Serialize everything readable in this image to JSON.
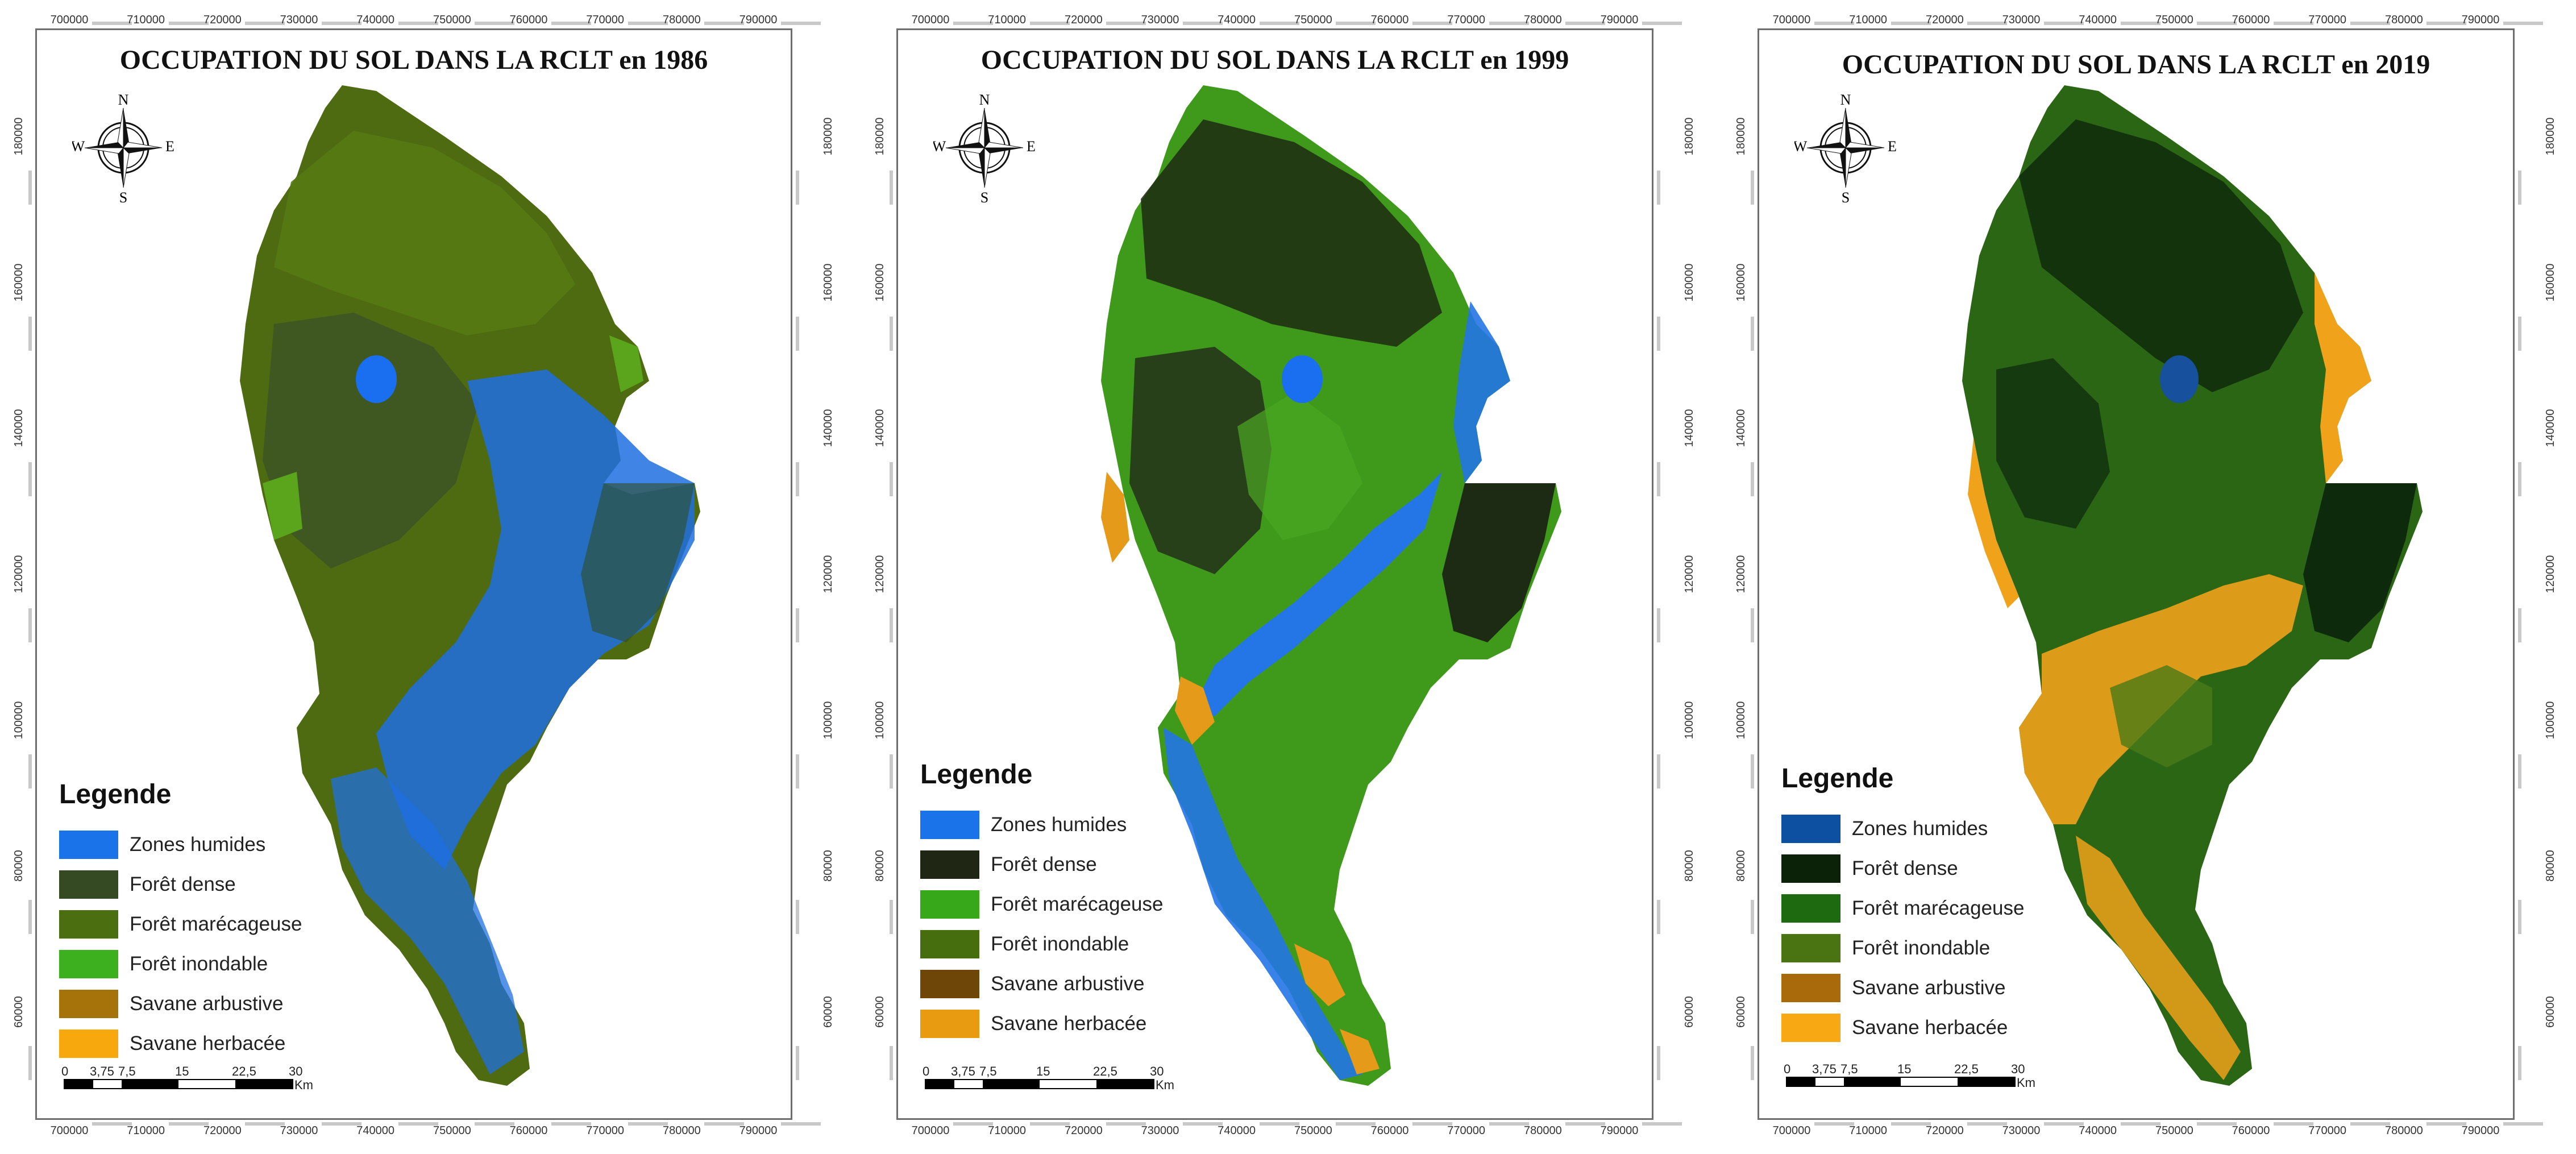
{
  "xticks": [
    "700000",
    "710000",
    "720000",
    "730000",
    "740000",
    "750000",
    "760000",
    "770000",
    "780000",
    "790000"
  ],
  "yticks": [
    "180000",
    "160000",
    "140000",
    "120000",
    "100000",
    "80000",
    "60000"
  ],
  "compass": {
    "n": "N",
    "s": "S",
    "e": "E",
    "w": "W"
  },
  "legend_title": "Legende",
  "scale": {
    "labels": [
      "0",
      "3,75",
      "7,5",
      "15",
      "22,5",
      "30"
    ],
    "unit": "Km"
  },
  "maps": [
    {
      "title": "OCCUPATION DU SOL DANS LA RCLT en 1986",
      "colors": {
        "base": "#4e6b12",
        "north": "#587a14",
        "dense": "#3e5524",
        "wet": "#1f6fe0",
        "flood": "#5aa51c",
        "savane": "#e8a21a",
        "east": "#2f4d24"
      },
      "legend": [
        {
          "label": "Zones humides",
          "color": "#1a73e8"
        },
        {
          "label": "Forêt dense",
          "color": "#354a22"
        },
        {
          "label": "Forêt marécageuse",
          "color": "#4b6e10"
        },
        {
          "label": "Forêt inondable",
          "color": "#3cb01e"
        },
        {
          "label": "Savane arbustive",
          "color": "#a6720a"
        },
        {
          "label": "Savane herbacée",
          "color": "#f7a80c"
        }
      ]
    },
    {
      "title": "OCCUPATION DU SOL DANS LA RCLT en 1999",
      "colors": {
        "base": "#3f9a1c",
        "north": "#1f2a10",
        "dense": "#24301a",
        "wet": "#2475e6",
        "flood": "#4aa622",
        "savane": "#e59a1a",
        "east": "#1e2b14"
      },
      "legend": [
        {
          "label": "Zones humides",
          "color": "#1a73e8"
        },
        {
          "label": "Forêt dense",
          "color": "#1f2714"
        },
        {
          "label": "Forêt marécageuse",
          "color": "#36a81a"
        },
        {
          "label": "Forêt inondable",
          "color": "#466e0e"
        },
        {
          "label": "Savane arbustive",
          "color": "#6e4608"
        },
        {
          "label": "Savane herbacée",
          "color": "#e89a10"
        }
      ]
    },
    {
      "title": "OCCUPATION DU SOL DANS LA RCLT en 2019",
      "colors": {
        "base": "#2a6614",
        "north": "#0f2a0c",
        "dense": "#12300e",
        "wet": "#17509c",
        "flood": "#4a7a16",
        "savane": "#f0a21a",
        "east": "#0d2a0c"
      },
      "legend": [
        {
          "label": "Zones humides",
          "color": "#0d4fa0"
        },
        {
          "label": "Forêt dense",
          "color": "#0b2208"
        },
        {
          "label": "Forêt marécageuse",
          "color": "#1e6a10"
        },
        {
          "label": "Forêt inondable",
          "color": "#4a7412"
        },
        {
          "label": "Savane arbustive",
          "color": "#a86a0a"
        },
        {
          "label": "Savane herbacée",
          "color": "#f7a812"
        }
      ]
    }
  ]
}
